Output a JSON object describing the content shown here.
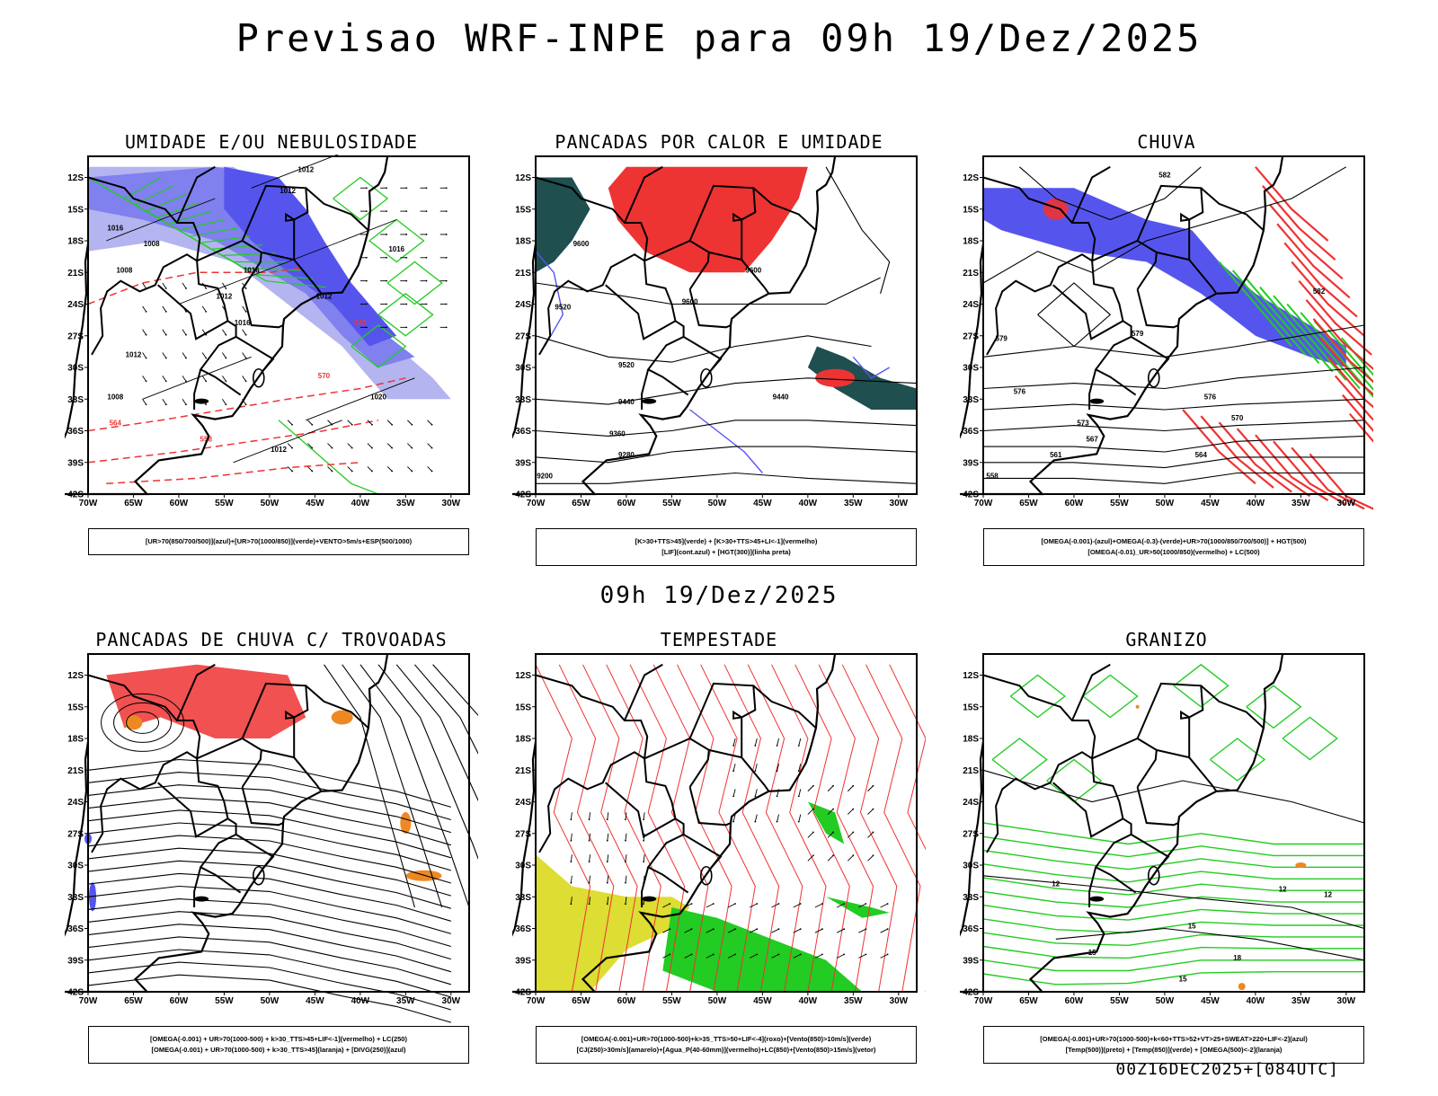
{
  "header": {
    "title": "Previsao WRF-INPE  para 09h 19/Dez/2025"
  },
  "middle": {
    "time_label": "09h 19/Dez/2025"
  },
  "footer": {
    "stamp": "00Z16DEC2025+[084UTC]"
  },
  "axes": {
    "lat_labels": [
      "12S",
      "15S",
      "18S",
      "21S",
      "24S",
      "27S",
      "30S",
      "33S",
      "36S",
      "39S",
      "42S"
    ],
    "lon_labels": [
      "70W",
      "65W",
      "60W",
      "55W",
      "50W",
      "45W",
      "40W",
      "35W",
      "30W"
    ]
  },
  "colors": {
    "blue_light": "#b4b4f0",
    "blue_mid": "#8080ee",
    "blue": "#5555ee",
    "green": "#22cc22",
    "red": "#ee3333",
    "dark_teal": "#1f4f4f",
    "orange": "#ee8822",
    "yellow": "#dddd33"
  },
  "panels": [
    {
      "title": "UMIDADE E/OU NEBULOSIDADE",
      "legend": [
        "[UR>70(850/700/500)](azul)+[UR>70(1000/850)](verde)+VENTO>5m/s+ESP(500/1000)"
      ]
    },
    {
      "title": "PANCADAS POR CALOR E UMIDADE",
      "legend": [
        "[K>30+TTS>45](verde)  +  [K>30+TTS>45+LI<-1](vermelho)",
        "[LIF](cont.azul)  +  [HGT(300)](linha preta)"
      ]
    },
    {
      "title": "CHUVA",
      "legend": [
        "[OMEGA(-0.001)-(azul)+OMEGA(-0.3)-(verde)+UR>70(1000/850/700/500)]  +  HGT(500)",
        "[OMEGA(-0.01)_UR>50(1000/850)(vermelho)  +  LC(500)"
      ]
    },
    {
      "title": "PANCADAS DE CHUVA C/ TROVOADAS",
      "legend": [
        "[OMEGA(-0.001)  +  UR>70(1000-500)  +  k>30_TTS>45+LIF<-1](vermelho)  +  LC(250)",
        "[OMEGA(-0.001)  +  UR>70(1000-500)  +  k>30_TTS>45](laranja)  +  [DIVG(250)](azul)"
      ]
    },
    {
      "title": "TEMPESTADE",
      "legend": [
        "[OMEGA(-0.001)+UR>70(1000-500)+k>35_TTS>50+LIF<-4](roxo)+[Vento(850)>10m/s](verde)",
        "[CJ(250)>30m/s](amarelo)+[Agua_P(40-60mm)](vermelho)+LC(850)+[Vento(850)>15m/s](vetor)"
      ]
    },
    {
      "title": "GRANIZO",
      "legend": [
        "[OMEGA(-0.001)+UR>70(1000-500)+k<60+TTS>52+VT>25+SWEAT>220+LIF<-2](azul)",
        "[Temp(500)](preto)  +  [Temp(850)](verde)  +  [OMEGA(500)<-2](laranja)"
      ]
    }
  ],
  "contour_labels": {
    "p1": [
      "1012",
      "1012",
      "1016",
      "1008",
      "1008",
      "1012",
      "1016",
      "1012",
      "1016",
      "1020",
      "1012",
      "1016",
      "1012",
      "1008",
      "576",
      "570",
      "564",
      "558"
    ],
    "p2": [
      "9600",
      "9520",
      "9600",
      "9520",
      "9440",
      "9360",
      "9280",
      "9200",
      "9600",
      "9440"
    ],
    "p3": [
      "582",
      "579",
      "579",
      "576",
      "573",
      "570",
      "567",
      "564",
      "561",
      "558",
      "576",
      "582"
    ],
    "p5": [],
    "p6": [
      "12",
      "12",
      "15",
      "15",
      "15",
      "18",
      "12"
    ]
  }
}
